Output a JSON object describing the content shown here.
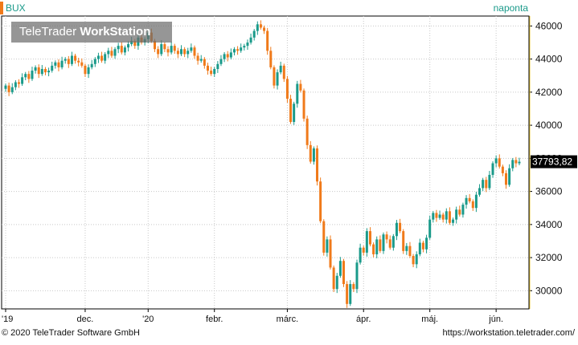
{
  "header": {
    "symbol": "BUX",
    "period": "naponta",
    "watermark_a": "TeleTrader ",
    "watermark_b": "WorkStation"
  },
  "footer": {
    "copyright": "© 2020 TeleTrader Software GmbH",
    "url": "https://workstation.teletrader.com/"
  },
  "colors": {
    "up": "#1a9a8a",
    "down": "#f07a1a",
    "grid": "#c8c8c8",
    "price_box": "#000000"
  },
  "chart_data": {
    "type": "candlestick",
    "title": "BUX",
    "x_tick_labels": [
      "'19",
      "dec.",
      "'20",
      "febr.",
      "márc.",
      "ápr.",
      "máj.",
      "jún."
    ],
    "x_tick_index": [
      0,
      24,
      43,
      63,
      85,
      108,
      128,
      148
    ],
    "y_ticks": [
      30000,
      32000,
      34000,
      36000,
      38000,
      40000,
      42000,
      44000,
      46000
    ],
    "y_tick_labels": [
      "30000",
      "32000",
      "34000",
      "36000",
      "38000",
      "40000",
      "42000",
      "44000",
      "46000"
    ],
    "ylim": [
      28900,
      46600
    ],
    "last_value": 37793.82,
    "last_value_label": "37793,82",
    "grid": true,
    "closes": [
      42400,
      42000,
      42300,
      42600,
      42500,
      42900,
      43100,
      42800,
      43300,
      43500,
      43100,
      43400,
      43200,
      43300,
      43600,
      43800,
      43500,
      43900,
      44000,
      43700,
      44200,
      43900,
      43800,
      43600,
      43100,
      43500,
      43700,
      44000,
      44200,
      43900,
      44300,
      44500,
      44200,
      44600,
      44800,
      44400,
      44700,
      44900,
      45100,
      44800,
      45300,
      45000,
      45200,
      45600,
      45100,
      44600,
      44300,
      44900,
      44600,
      44400,
      44800,
      44500,
      44300,
      44600,
      44300,
      44500,
      44700,
      44200,
      43900,
      44000,
      43600,
      43300,
      43100,
      43400,
      43700,
      44000,
      44300,
      44100,
      44400,
      44600,
      44500,
      44700,
      44800,
      45000,
      45300,
      45700,
      46100,
      45900,
      45700,
      44500,
      43500,
      42400,
      43200,
      43600,
      42800,
      41600,
      40200,
      41300,
      42500,
      42100,
      40400,
      38800,
      37800,
      38600,
      36600,
      34200,
      32300,
      33100,
      31400,
      30100,
      30900,
      31800,
      30400,
      29200,
      30400,
      30100,
      31700,
      32600,
      32300,
      33600,
      32800,
      32200,
      33100,
      32400,
      33400,
      33100,
      32600,
      33300,
      34100,
      33600,
      32400,
      32700,
      32100,
      31600,
      32200,
      32900,
      32500,
      33200,
      34300,
      34700,
      34400,
      34600,
      34300,
      34800,
      34100,
      34300,
      34900,
      34600,
      35200,
      35600,
      35400,
      35000,
      35800,
      36200,
      36700,
      36200,
      37000,
      37700,
      38000,
      37500,
      37100,
      36400,
      37400,
      37900,
      37700,
      37794
    ]
  }
}
